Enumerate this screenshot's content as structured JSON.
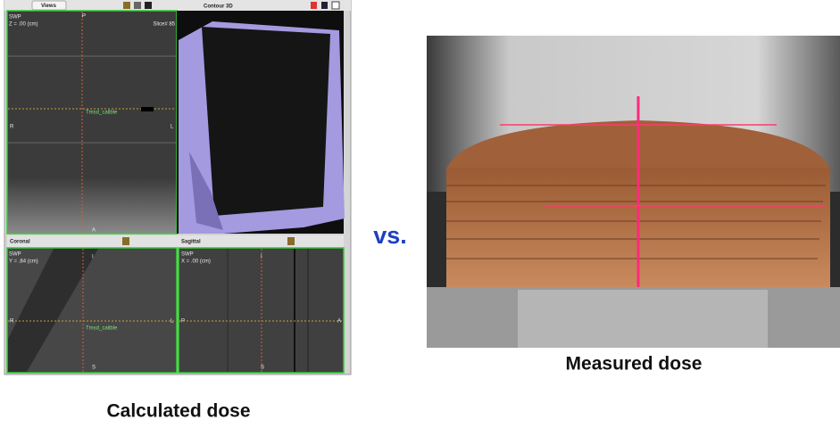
{
  "calculated": {
    "toolbar_label": "Views",
    "axial": {
      "series": "SWP",
      "position": "Z = .00 (cm)",
      "slice": "Slice# 85",
      "marker": "Tmsd_calible",
      "orientation": [
        "P",
        "R",
        "L",
        "A"
      ]
    },
    "contour_3d": {
      "title": "Contour 3D"
    },
    "coronal": {
      "title": "Coronal",
      "series": "SWP",
      "position": "Y = .84 (cm)",
      "marker": "Tmsd_calible",
      "orientation": [
        "I",
        "R",
        "L",
        "S"
      ]
    },
    "sagittal": {
      "title": "Sagittal",
      "series": "SWP",
      "position": "X = .00 (cm)",
      "orientation": [
        "I",
        "P",
        "A",
        "S"
      ]
    },
    "caption": "Calculated dose"
  },
  "separator": "vs.",
  "measured": {
    "caption": "Measured dose"
  }
}
